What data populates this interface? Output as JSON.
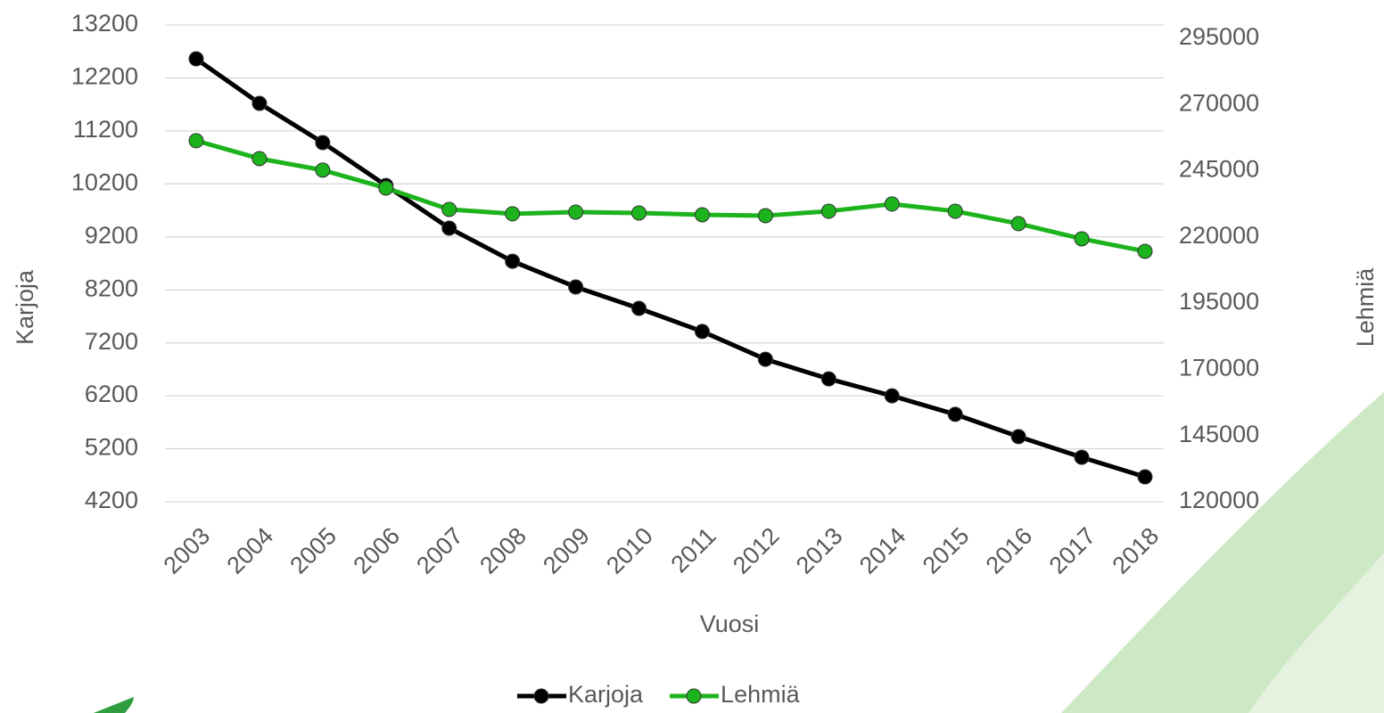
{
  "chart_data": {
    "type": "line",
    "x_label": "Vuosi",
    "y_label": "Karjoja",
    "y2_label": "Lehmiä",
    "categories": [
      "2003",
      "2004",
      "2005",
      "2006",
      "2007",
      "2008",
      "2009",
      "2010",
      "2011",
      "2012",
      "2013",
      "2014",
      "2015",
      "2016",
      "2017",
      "2018"
    ],
    "series": [
      {
        "name": "Karjoja",
        "color": "#000000",
        "values": [
          12560,
          11720,
          10980,
          10170,
          9365,
          8740,
          8255,
          7850,
          7415,
          6890,
          6520,
          6200,
          5850,
          5430,
          5040,
          4670
        ]
      },
      {
        "name": "Lehmiä",
        "color": "#1db31d",
        "axis": "y2",
        "values": [
          256300,
          249550,
          245200,
          238450,
          230370,
          228700,
          229360,
          229030,
          228350,
          228020,
          229700,
          232400,
          229700,
          225000,
          219270,
          214560
        ]
      }
    ],
    "ylim": [
      4200,
      13200
    ],
    "yticks": [
      4200,
      5200,
      6200,
      7200,
      8200,
      9200,
      10200,
      11200,
      12200,
      13200
    ],
    "y2lim": [
      120000,
      300000
    ],
    "y2ticks": [
      120000,
      145000,
      170000,
      195000,
      220000,
      245000,
      270000,
      295000
    ],
    "grid": true,
    "legend": "bottom"
  }
}
